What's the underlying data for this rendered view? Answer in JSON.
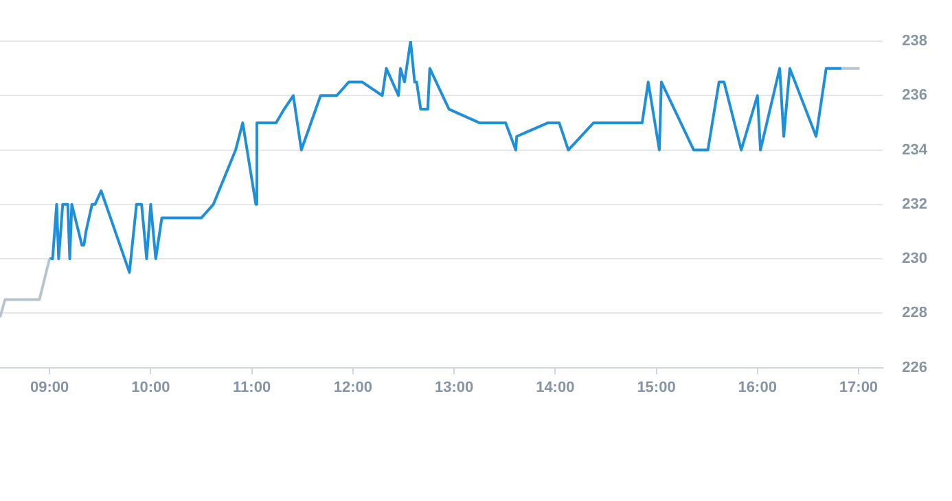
{
  "chart_data": {
    "type": "line",
    "grid": "y",
    "marker": "none",
    "line_style": "solid",
    "xlim": [
      8.51,
      17.24
    ],
    "ylim": [
      226,
      238
    ],
    "xticks": [
      {
        "value": 9,
        "label": "09:00"
      },
      {
        "value": 10,
        "label": "10:00"
      },
      {
        "value": 11,
        "label": "11:00"
      },
      {
        "value": 12,
        "label": "12:00"
      },
      {
        "value": 13,
        "label": "13:00"
      },
      {
        "value": 14,
        "label": "14:00"
      },
      {
        "value": 15,
        "label": "15:00"
      },
      {
        "value": 16,
        "label": "16:00"
      },
      {
        "value": 17,
        "label": "17:00"
      }
    ],
    "yticks": [
      226,
      228,
      230,
      232,
      234,
      236,
      238
    ],
    "series": [
      {
        "color": "#b8c4ce",
        "x": [
          8.51,
          8.56,
          8.9,
          9.0
        ],
        "values": [
          227.85,
          228.5,
          228.5,
          230
        ]
      },
      {
        "color": "#1e8fd8",
        "x": [
          9.0,
          9.03,
          9.07,
          9.09,
          9.13,
          9.18,
          9.2,
          9.22,
          9.26,
          9.32,
          9.34,
          9.36,
          9.42,
          9.45,
          9.51,
          9.79,
          9.86,
          9.91,
          9.96,
          10.0,
          10.05,
          10.11,
          10.5,
          10.62,
          10.84,
          10.91,
          11.04,
          11.05,
          11.24,
          11.32,
          11.41,
          11.49,
          11.68,
          11.84,
          11.96,
          12.09,
          12.29,
          12.33,
          12.45,
          12.47,
          12.51,
          12.57,
          12.61,
          12.63,
          12.67,
          12.74,
          12.76,
          12.95,
          13.25,
          13.51,
          13.61,
          13.62,
          13.93,
          14.04,
          14.13,
          14.38,
          14.86,
          14.92,
          15.03,
          15.05,
          15.37,
          15.51,
          15.62,
          15.67,
          15.84,
          16.0,
          16.03,
          16.22,
          16.26,
          16.32,
          16.58,
          16.68,
          16.83
        ],
        "values": [
          230,
          230,
          232,
          230,
          232,
          232,
          230,
          232,
          231.4,
          230.5,
          230.5,
          231,
          232,
          232,
          232.5,
          229.5,
          232,
          232,
          230,
          232,
          230,
          231.5,
          231.5,
          232,
          234,
          235,
          232,
          235,
          235,
          235.5,
          236,
          234,
          236,
          236,
          236.5,
          236.5,
          236,
          237,
          236,
          237,
          236.5,
          238,
          236.5,
          236.5,
          235.5,
          235.5,
          237,
          235.5,
          235,
          235,
          234,
          234.5,
          235,
          235,
          234,
          235,
          235,
          236.5,
          234,
          236.5,
          234,
          234,
          236.5,
          236.5,
          234,
          236,
          234,
          237,
          234.5,
          237,
          234.5,
          237,
          237
        ]
      },
      {
        "color": "#b8c4ce",
        "x": [
          16.83,
          17.01
        ],
        "values": [
          237,
          237
        ]
      }
    ]
  }
}
